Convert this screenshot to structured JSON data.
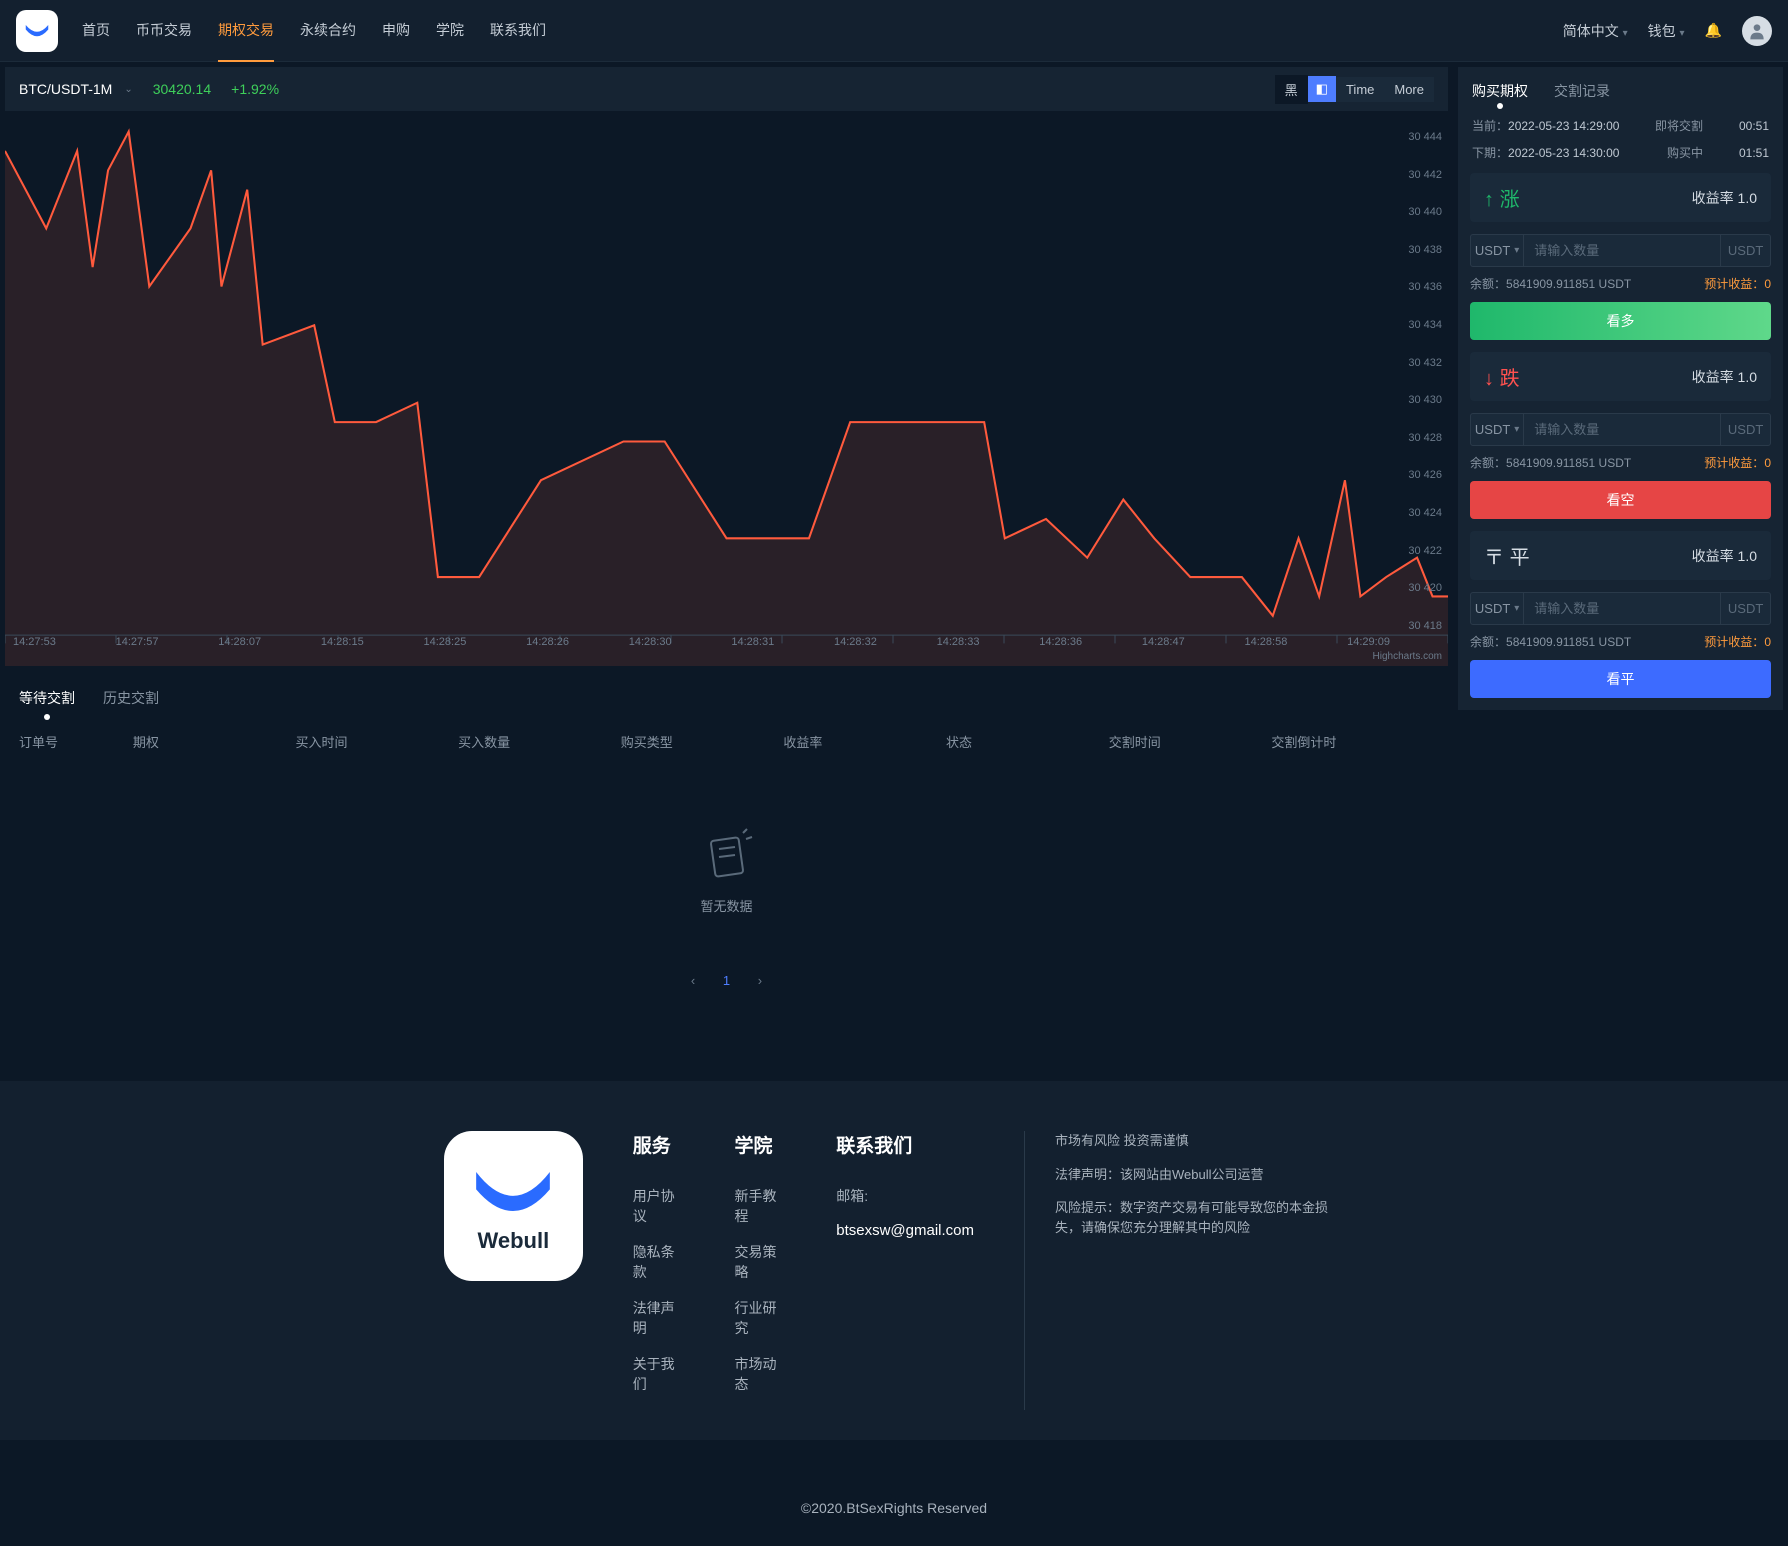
{
  "nav": {
    "items": [
      "首页",
      "币币交易",
      "期权交易",
      "永续合约",
      "申购",
      "学院",
      "联系我们"
    ],
    "active_index": 2,
    "lang": "简体中文",
    "wallet": "钱包"
  },
  "symbol": {
    "pair": "BTC/USDT-1M",
    "price": "30420.14",
    "change": "+1.92%",
    "toolbar": {
      "black": "黑",
      "time": "Time",
      "more": "More"
    }
  },
  "chart": {
    "type": "line",
    "line_color": "#ff5a3d",
    "fill_color": "rgba(255,90,61,0.12)",
    "background": "#0c1826",
    "ylim": [
      30418,
      30444
    ],
    "y_ticks": [
      "30 444",
      "30 442",
      "30 440",
      "30 438",
      "30 436",
      "30 434",
      "30 432",
      "30 430",
      "30 428",
      "30 426",
      "30 424",
      "30 422",
      "30 420",
      "30 418"
    ],
    "x_ticks": [
      "14:27:53",
      "14:27:57",
      "14:28:07",
      "14:28:15",
      "14:28:25",
      "14:28:26",
      "14:28:30",
      "14:28:31",
      "14:28:32",
      "14:28:33",
      "14:28:36",
      "14:28:47",
      "14:28:58",
      "14:29:09"
    ],
    "points": [
      [
        0,
        30443
      ],
      [
        40,
        30439
      ],
      [
        70,
        30443
      ],
      [
        85,
        30437
      ],
      [
        100,
        30442
      ],
      [
        120,
        30444
      ],
      [
        140,
        30436
      ],
      [
        180,
        30439
      ],
      [
        200,
        30442
      ],
      [
        210,
        30436
      ],
      [
        235,
        30441
      ],
      [
        250,
        30433
      ],
      [
        300,
        30434
      ],
      [
        320,
        30429
      ],
      [
        360,
        30429
      ],
      [
        400,
        30430
      ],
      [
        420,
        30421
      ],
      [
        460,
        30421
      ],
      [
        520,
        30426
      ],
      [
        600,
        30428
      ],
      [
        640,
        30428
      ],
      [
        700,
        30423
      ],
      [
        780,
        30423
      ],
      [
        820,
        30429
      ],
      [
        950,
        30429
      ],
      [
        970,
        30423
      ],
      [
        1010,
        30424
      ],
      [
        1050,
        30422
      ],
      [
        1085,
        30425
      ],
      [
        1115,
        30423
      ],
      [
        1150,
        30421
      ],
      [
        1200,
        30421
      ],
      [
        1230,
        30419
      ],
      [
        1255,
        30423
      ],
      [
        1275,
        30420
      ],
      [
        1300,
        30426
      ],
      [
        1315,
        30420
      ],
      [
        1340,
        30421
      ],
      [
        1370,
        30422
      ],
      [
        1385,
        30420
      ],
      [
        1400,
        30420
      ]
    ],
    "credit": "Highcharts.com"
  },
  "order_tabs": {
    "pending": "等待交割",
    "history": "历史交割"
  },
  "order_cols": [
    "订单号",
    "期权",
    "买入时间",
    "买入数量",
    "购买类型",
    "收益率",
    "状态",
    "交割时间",
    "交割倒计时"
  ],
  "empty_text": "暂无数据",
  "panel": {
    "tabs": {
      "buy": "购买期权",
      "rec": "交割记录"
    },
    "cur_label": "当前：",
    "cur_time": "2022-05-23 14:29:00",
    "soon_label": "即将交割",
    "soon_cd": "00:51",
    "next_label": "下期：",
    "next_time": "2022-05-23 14:30:00",
    "buying_label": "购买中",
    "buying_cd": "01:51",
    "rate_label": "收益率",
    "up": "涨",
    "down": "跌",
    "flat": "平",
    "rate_up": "1.0",
    "rate_down": "1.0",
    "rate_flat": "1.0",
    "currency": "USDT",
    "placeholder": "请输入数量",
    "bal_label": "余额：",
    "bal_val": "5841909.911851 USDT",
    "exp_label": "预计收益：",
    "exp_val": "0",
    "btn_up": "看多",
    "btn_down": "看空",
    "btn_flat": "看平"
  },
  "footer": {
    "brand": "Webull",
    "service": {
      "title": "服务",
      "items": [
        "用户协议",
        "隐私条款",
        "法律声明",
        "关于我们"
      ]
    },
    "academy": {
      "title": "学院",
      "items": [
        "新手教程",
        "交易策略",
        "行业研究",
        "市场动态"
      ]
    },
    "contact": {
      "title": "联系我们",
      "mail_label": "邮箱:",
      "mail": "btsexsw@gmail.com"
    },
    "notes": [
      "市场有风险 投资需谨慎",
      "法律声明：该网站由Webull公司运营",
      "风险提示：数字资产交易有可能导致您的本金损失，请确保您充分理解其中的风险"
    ],
    "copy": "©2020.BtSexRights Reserved"
  }
}
